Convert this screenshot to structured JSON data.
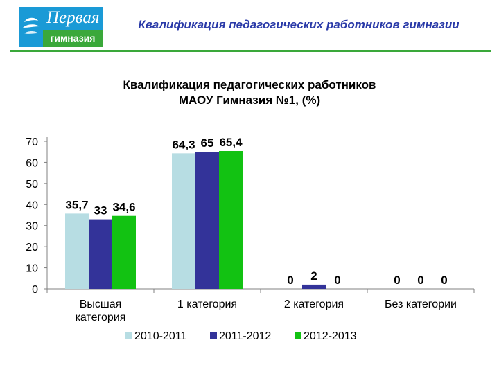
{
  "header": {
    "title": "Квалификация педагогических работников гимназии",
    "logo": {
      "line1": "Первая",
      "line2": "гимназия",
      "colors": {
        "blue": "#1a9ad6",
        "green": "#3aa83a"
      }
    }
  },
  "chart_data": {
    "type": "bar",
    "title_lines": [
      "Квалификация педагогических работников",
      "МАОУ Гимназия №1, (%)"
    ],
    "categories": [
      [
        "Высшая",
        "категория"
      ],
      [
        "1 категория"
      ],
      [
        "2 категория"
      ],
      [
        "Без категории"
      ]
    ],
    "series": [
      {
        "name": "2010-2011",
        "color": "#b7dde3",
        "values": [
          35.7,
          64.3,
          0,
          0
        ],
        "labels": [
          "35,7",
          "64,3",
          "0",
          "0"
        ]
      },
      {
        "name": "2011-2012",
        "color": "#333399",
        "values": [
          33,
          65,
          2,
          0
        ],
        "labels": [
          "33",
          "65",
          "2",
          "0"
        ]
      },
      {
        "name": "2012-2013",
        "color": "#12c212",
        "values": [
          34.6,
          65.4,
          0,
          0
        ],
        "labels": [
          "34,6",
          "65,4",
          "0",
          "0"
        ]
      }
    ],
    "yticks": [
      "0",
      "10",
      "20",
      "30",
      "40",
      "50",
      "60",
      "70"
    ],
    "ylim": [
      0,
      70
    ],
    "grid": false,
    "legend_position": "bottom"
  }
}
